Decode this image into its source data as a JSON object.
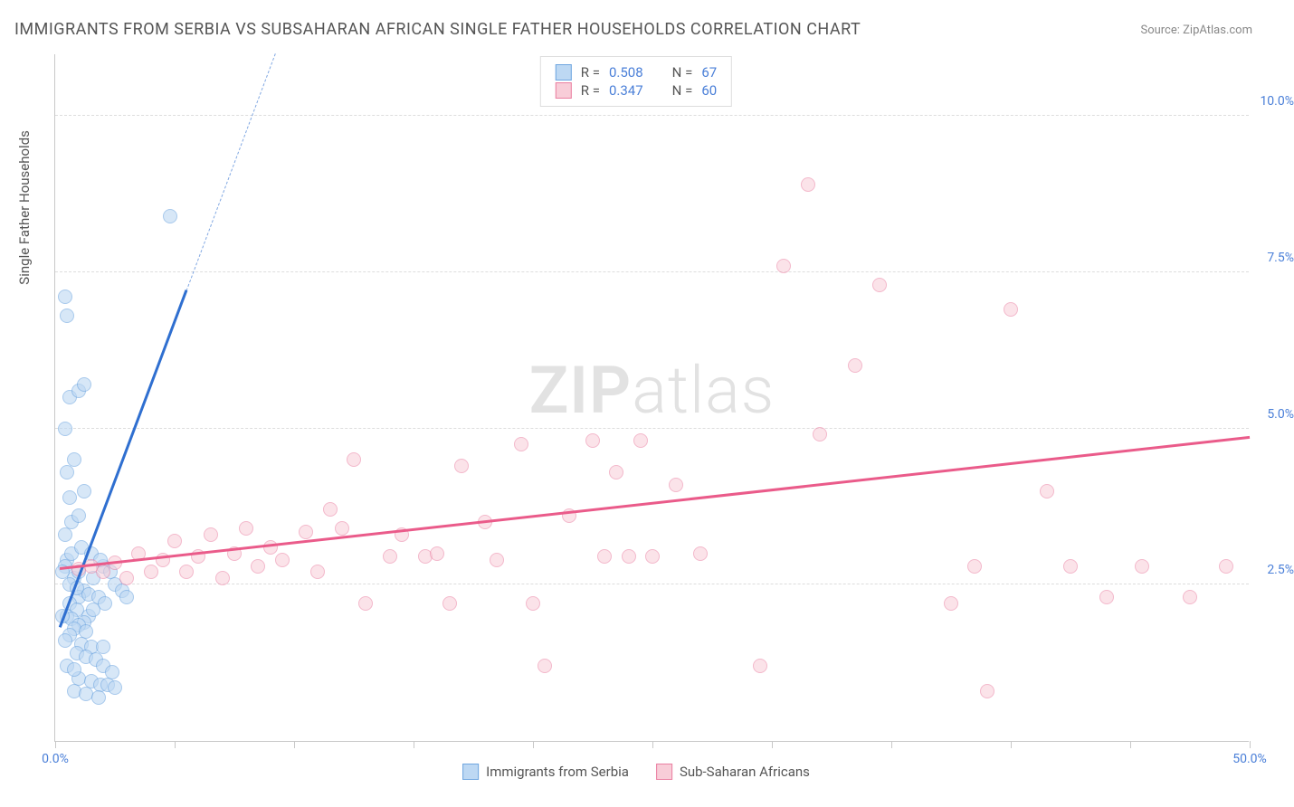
{
  "title": "IMMIGRANTS FROM SERBIA VS SUBSAHARAN AFRICAN SINGLE FATHER HOUSEHOLDS CORRELATION CHART",
  "source": "Source: ZipAtlas.com",
  "y_axis_title": "Single Father Households",
  "watermark_a": "ZIP",
  "watermark_b": "atlas",
  "chart": {
    "type": "scatter-with-trend",
    "background_color": "#ffffff",
    "grid_color": "#dddddd",
    "border_color": "#c8c8c8",
    "xlim": [
      0,
      50
    ],
    "ylim": [
      0,
      11
    ],
    "x_ticks_labeled": [
      {
        "v": 0,
        "label": "0.0%"
      },
      {
        "v": 50,
        "label": "50.0%"
      }
    ],
    "x_ticks_minor": [
      5,
      10,
      15,
      20,
      25,
      30,
      35,
      40,
      45
    ],
    "y_ticks": [
      {
        "v": 2.5,
        "label": "2.5%"
      },
      {
        "v": 5.0,
        "label": "5.0%"
      },
      {
        "v": 7.5,
        "label": "7.5%"
      },
      {
        "v": 10.0,
        "label": "10.0%"
      }
    ],
    "marker_radius": 8,
    "marker_stroke_width": 1.3,
    "series": [
      {
        "name": "Immigrants from Serbia",
        "fill": "#bdd8f3",
        "stroke": "#6fa6e0",
        "fill_opacity": 0.6,
        "R": "0.508",
        "N": "67",
        "trend": {
          "color": "#2f6fd0",
          "width": 2.5,
          "p1": [
            0.2,
            1.8
          ],
          "p2": [
            5.5,
            7.2
          ],
          "dash_to_y": 11.0
        },
        "points": [
          [
            0.5,
            2.9
          ],
          [
            0.4,
            2.8
          ],
          [
            0.3,
            2.7
          ],
          [
            0.8,
            2.6
          ],
          [
            1.0,
            2.7
          ],
          [
            1.2,
            2.4
          ],
          [
            1.0,
            2.3
          ],
          [
            0.6,
            2.2
          ],
          [
            0.9,
            2.1
          ],
          [
            1.4,
            2.0
          ],
          [
            1.6,
            2.1
          ],
          [
            0.5,
            2.0
          ],
          [
            0.7,
            1.95
          ],
          [
            1.2,
            1.9
          ],
          [
            1.0,
            1.85
          ],
          [
            0.8,
            1.8
          ],
          [
            1.3,
            1.75
          ],
          [
            0.6,
            1.7
          ],
          [
            0.4,
            1.6
          ],
          [
            1.1,
            1.55
          ],
          [
            1.5,
            1.5
          ],
          [
            2.0,
            1.5
          ],
          [
            0.9,
            1.4
          ],
          [
            1.3,
            1.35
          ],
          [
            1.7,
            1.3
          ],
          [
            2.0,
            1.2
          ],
          [
            2.4,
            1.1
          ],
          [
            1.0,
            1.0
          ],
          [
            1.5,
            0.95
          ],
          [
            1.9,
            0.9
          ],
          [
            2.2,
            0.9
          ],
          [
            2.5,
            0.85
          ],
          [
            0.8,
            0.8
          ],
          [
            1.3,
            0.75
          ],
          [
            1.8,
            0.7
          ],
          [
            0.4,
            3.3
          ],
          [
            0.7,
            3.5
          ],
          [
            1.0,
            3.6
          ],
          [
            0.6,
            3.9
          ],
          [
            1.2,
            4.0
          ],
          [
            0.5,
            4.3
          ],
          [
            0.8,
            4.5
          ],
          [
            0.4,
            5.0
          ],
          [
            0.6,
            5.5
          ],
          [
            1.0,
            5.6
          ],
          [
            1.2,
            5.7
          ],
          [
            0.5,
            6.8
          ],
          [
            0.4,
            7.1
          ],
          [
            4.8,
            8.4
          ],
          [
            0.6,
            2.5
          ],
          [
            0.9,
            2.45
          ],
          [
            1.4,
            2.35
          ],
          [
            1.8,
            2.3
          ],
          [
            2.1,
            2.2
          ],
          [
            1.6,
            2.6
          ],
          [
            2.0,
            2.8
          ],
          [
            2.3,
            2.7
          ],
          [
            2.5,
            2.5
          ],
          [
            2.8,
            2.4
          ],
          [
            3.0,
            2.3
          ],
          [
            0.7,
            3.0
          ],
          [
            1.1,
            3.1
          ],
          [
            1.5,
            3.0
          ],
          [
            1.9,
            2.9
          ],
          [
            0.3,
            2.0
          ],
          [
            0.5,
            1.2
          ],
          [
            0.8,
            1.15
          ]
        ]
      },
      {
        "name": "Sub-Saharan Africans",
        "fill": "#f8cdd8",
        "stroke": "#ea7fa1",
        "fill_opacity": 0.55,
        "R": "0.347",
        "N": "60",
        "trend": {
          "color": "#ea5b8a",
          "width": 2.5,
          "p1": [
            0.2,
            2.75
          ],
          "p2": [
            50,
            4.85
          ]
        },
        "points": [
          [
            1.0,
            2.75
          ],
          [
            1.5,
            2.8
          ],
          [
            2.0,
            2.7
          ],
          [
            2.5,
            2.85
          ],
          [
            3.0,
            2.6
          ],
          [
            3.5,
            3.0
          ],
          [
            4.0,
            2.7
          ],
          [
            4.5,
            2.9
          ],
          [
            5.0,
            3.2
          ],
          [
            5.5,
            2.7
          ],
          [
            6.5,
            3.3
          ],
          [
            7.0,
            2.6
          ],
          [
            7.5,
            3.0
          ],
          [
            8.0,
            3.4
          ],
          [
            8.5,
            2.8
          ],
          [
            9.0,
            3.1
          ],
          [
            9.5,
            2.9
          ],
          [
            10.5,
            3.35
          ],
          [
            11.0,
            2.7
          ],
          [
            12.0,
            3.4
          ],
          [
            12.5,
            4.5
          ],
          [
            13.0,
            2.2
          ],
          [
            14.0,
            2.95
          ],
          [
            14.5,
            3.3
          ],
          [
            15.5,
            2.95
          ],
          [
            16.0,
            3.0
          ],
          [
            16.5,
            2.2
          ],
          [
            17.0,
            4.4
          ],
          [
            18.0,
            3.5
          ],
          [
            18.5,
            2.9
          ],
          [
            19.5,
            4.75
          ],
          [
            20.0,
            2.2
          ],
          [
            20.5,
            1.2
          ],
          [
            21.5,
            3.6
          ],
          [
            22.5,
            4.8
          ],
          [
            23.0,
            2.95
          ],
          [
            23.5,
            4.3
          ],
          [
            24.0,
            2.95
          ],
          [
            24.5,
            4.8
          ],
          [
            25.0,
            2.95
          ],
          [
            26.0,
            4.1
          ],
          [
            27.0,
            3.0
          ],
          [
            29.5,
            1.2
          ],
          [
            30.5,
            7.6
          ],
          [
            31.5,
            8.9
          ],
          [
            32.0,
            4.9
          ],
          [
            33.5,
            6.0
          ],
          [
            34.5,
            7.3
          ],
          [
            37.5,
            2.2
          ],
          [
            38.5,
            2.8
          ],
          [
            39.0,
            0.8
          ],
          [
            40.0,
            6.9
          ],
          [
            41.5,
            4.0
          ],
          [
            42.5,
            2.8
          ],
          [
            44.0,
            2.3
          ],
          [
            45.5,
            2.8
          ],
          [
            47.5,
            2.3
          ],
          [
            49.0,
            2.8
          ],
          [
            6.0,
            2.95
          ],
          [
            11.5,
            3.7
          ]
        ]
      }
    ]
  },
  "legend_top": {
    "R_label": "R =",
    "N_label": "N ="
  }
}
